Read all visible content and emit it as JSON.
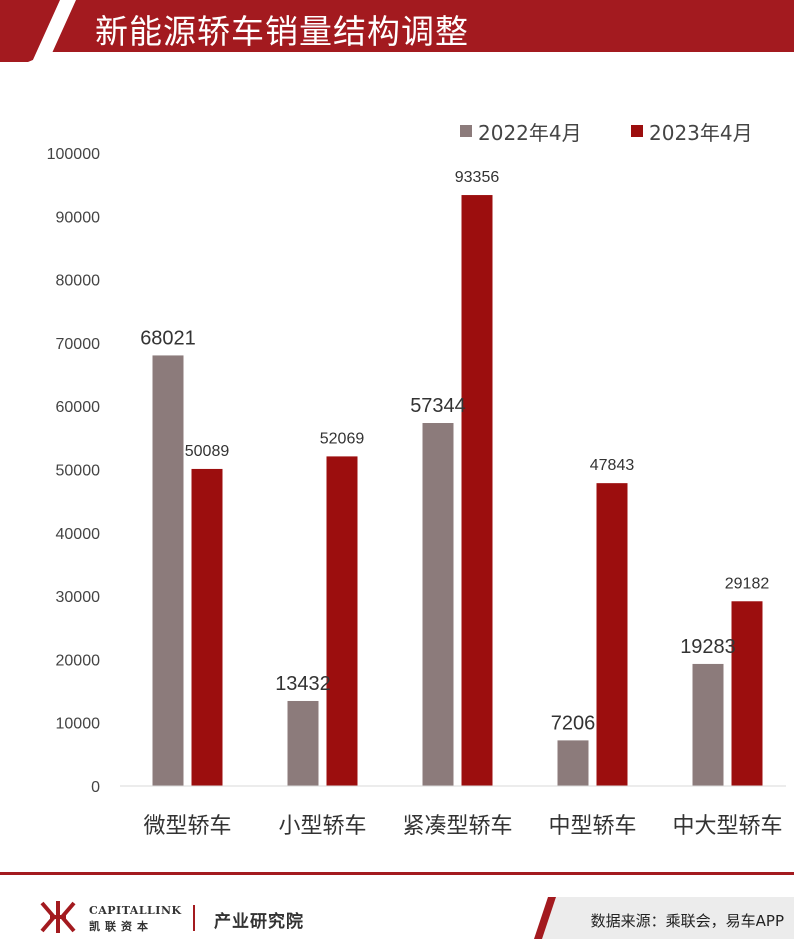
{
  "header": {
    "title": "新能源轿车销量结构调整"
  },
  "colors": {
    "brand_red": "#a31a1f",
    "series_2022": "#8c7b7b",
    "series_2023": "#9c0e0e"
  },
  "chart_data": {
    "type": "bar",
    "title": "",
    "xlabel": "",
    "ylabel": "",
    "categories": [
      "微型轿车",
      "小型轿车",
      "紧凑型轿车",
      "中型轿车",
      "中大型轿车"
    ],
    "series": [
      {
        "name": "2022年4月",
        "values": [
          68021,
          13432,
          57344,
          7206,
          19283
        ],
        "color": "#8c7b7b"
      },
      {
        "name": "2023年4月",
        "values": [
          50089,
          52069,
          93356,
          47843,
          29182
        ],
        "color": "#9c0e0e"
      }
    ],
    "ylim": [
      0,
      100000
    ],
    "yticks": [
      "0",
      "10000",
      "20000",
      "30000",
      "40000",
      "50000",
      "60000",
      "70000",
      "80000",
      "90000",
      "100000"
    ],
    "legend_position": "top-right",
    "grid": false
  },
  "footer": {
    "logo_en": "CAPITALLINK",
    "logo_cn": "凯联资本",
    "institute": "产业研究院",
    "source": "数据来源：乘联会，易车APP"
  }
}
